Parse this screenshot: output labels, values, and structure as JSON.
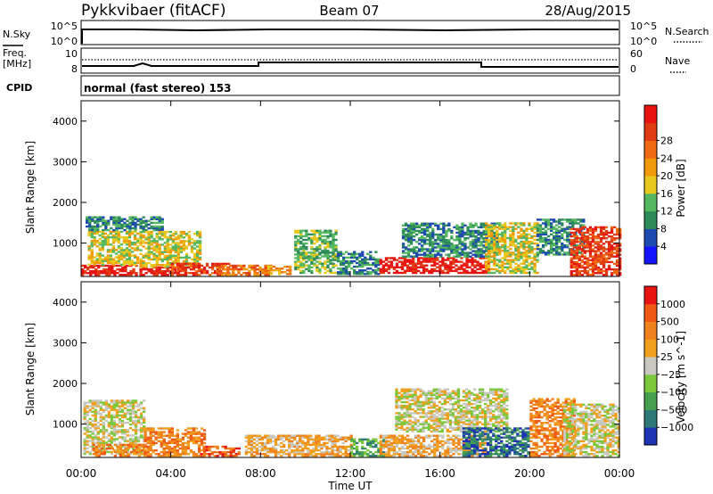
{
  "header": {
    "title": "Pykkvibaer (fitACF)",
    "beam": "Beam 07",
    "date": "28/Aug/2015"
  },
  "strip_labels": {
    "nsky": "N.Sky",
    "nsearch": "N.Search",
    "freq_line1": "Freq.",
    "freq_line2": "[MHz]",
    "nave": "Nave",
    "cpid": "CPID",
    "cpid_text": "normal (fast stereo) 153",
    "nsky_ticks": [
      "10^5",
      "10^0"
    ],
    "nsearch_ticks": [
      "10^5",
      "10^0"
    ],
    "freq_ticks": [
      "10",
      "8"
    ],
    "nave_ticks": [
      "60",
      "0"
    ]
  },
  "chart_data": [
    {
      "type": "heatmap",
      "name": "power",
      "ylabel": "Slant Range [km]",
      "ylim": [
        180,
        4500
      ],
      "yticks": [
        "1000",
        "2000",
        "3000",
        "4000"
      ],
      "colorbar_label": "Power [dB]",
      "colorbar_ticks": [
        "4",
        "8",
        "12",
        "16",
        "20",
        "24",
        "28"
      ],
      "colors": [
        "#1414ff",
        "#1e4bb0",
        "#2e8a5a",
        "#55b860",
        "#e6c81e",
        "#f09a0a",
        "#f06a14",
        "#e03c14",
        "#e81414"
      ],
      "x_range_hours": [
        0,
        24
      ],
      "patches": [
        {
          "t0": 0.0,
          "t1": 2.5,
          "r0": 200,
          "r1": 450,
          "level": 8
        },
        {
          "t0": 0.3,
          "t1": 2.5,
          "r0": 450,
          "r1": 1300,
          "level": 4
        },
        {
          "t0": 0.2,
          "t1": 3.6,
          "r0": 1300,
          "r1": 1650,
          "level": 2
        },
        {
          "t0": 2.6,
          "t1": 4.4,
          "r0": 200,
          "r1": 400,
          "level": 8
        },
        {
          "t0": 2.6,
          "t1": 5.3,
          "r0": 400,
          "r1": 1300,
          "level": 4
        },
        {
          "t0": 4.0,
          "t1": 6.6,
          "r0": 200,
          "r1": 500,
          "level": 7
        },
        {
          "t0": 6.0,
          "t1": 8.4,
          "r0": 200,
          "r1": 450,
          "level": 6
        },
        {
          "t0": 8.3,
          "t1": 9.3,
          "r0": 220,
          "r1": 420,
          "level": 5
        },
        {
          "t0": 9.5,
          "t1": 11.4,
          "r0": 250,
          "r1": 1300,
          "level": 3
        },
        {
          "t0": 11.4,
          "t1": 13.3,
          "r0": 220,
          "r1": 800,
          "level": 2
        },
        {
          "t0": 13.3,
          "t1": 18.2,
          "r0": 250,
          "r1": 650,
          "level": 8
        },
        {
          "t0": 14.3,
          "t1": 18.6,
          "r0": 650,
          "r1": 1500,
          "level": 2
        },
        {
          "t0": 18.0,
          "t1": 20.3,
          "r0": 250,
          "r1": 1500,
          "level": 4
        },
        {
          "t0": 20.3,
          "t1": 22.4,
          "r0": 700,
          "r1": 1600,
          "level": 2
        },
        {
          "t0": 21.8,
          "t1": 24.0,
          "r0": 200,
          "r1": 1400,
          "level": 7
        }
      ]
    },
    {
      "type": "heatmap",
      "name": "velocity",
      "ylabel": "Slant Range [km]",
      "ylim": [
        180,
        4500
      ],
      "yticks": [
        "1000",
        "2000",
        "3000",
        "4000"
      ],
      "colorbar_label": "Velocity [m s^-1]",
      "colorbar_ticks": [
        "1000",
        "500",
        "100",
        "25",
        "−25",
        "−100",
        "−500",
        "−1000"
      ],
      "colors": [
        "#1e32b4",
        "#2e7878",
        "#46a050",
        "#7cc83c",
        "#c8c8c0",
        "#f0a01e",
        "#f0821e",
        "#f05a14",
        "#e81414"
      ],
      "x_range_hours": [
        0,
        24
      ],
      "patches": [
        {
          "t0": 0.1,
          "t1": 2.8,
          "r0": 250,
          "r1": 1600,
          "level": 4
        },
        {
          "t0": 0.5,
          "t1": 2.8,
          "r0": 200,
          "r1": 500,
          "level": 6
        },
        {
          "t0": 2.8,
          "t1": 5.5,
          "r0": 200,
          "r1": 900,
          "level": 6
        },
        {
          "t0": 5.3,
          "t1": 7.0,
          "r0": 200,
          "r1": 450,
          "level": 7
        },
        {
          "t0": 7.3,
          "t1": 12.0,
          "r0": 200,
          "r1": 700,
          "level": 5
        },
        {
          "t0": 12.0,
          "t1": 13.5,
          "r0": 200,
          "r1": 650,
          "level": 2
        },
        {
          "t0": 13.3,
          "t1": 18.0,
          "r0": 200,
          "r1": 700,
          "level": 5
        },
        {
          "t0": 14.0,
          "t1": 19.0,
          "r0": 800,
          "r1": 1850,
          "level": 4
        },
        {
          "t0": 17.0,
          "t1": 20.0,
          "r0": 200,
          "r1": 900,
          "level": 1
        },
        {
          "t0": 20.0,
          "t1": 22.0,
          "r0": 200,
          "r1": 1600,
          "level": 6
        },
        {
          "t0": 21.5,
          "t1": 24.0,
          "r0": 200,
          "r1": 1500,
          "level": 4
        }
      ]
    }
  ],
  "xaxis": {
    "ticks": [
      "00:00",
      "04:00",
      "08:00",
      "12:00",
      "16:00",
      "20:00",
      "00:00"
    ],
    "label": "Time UT"
  }
}
